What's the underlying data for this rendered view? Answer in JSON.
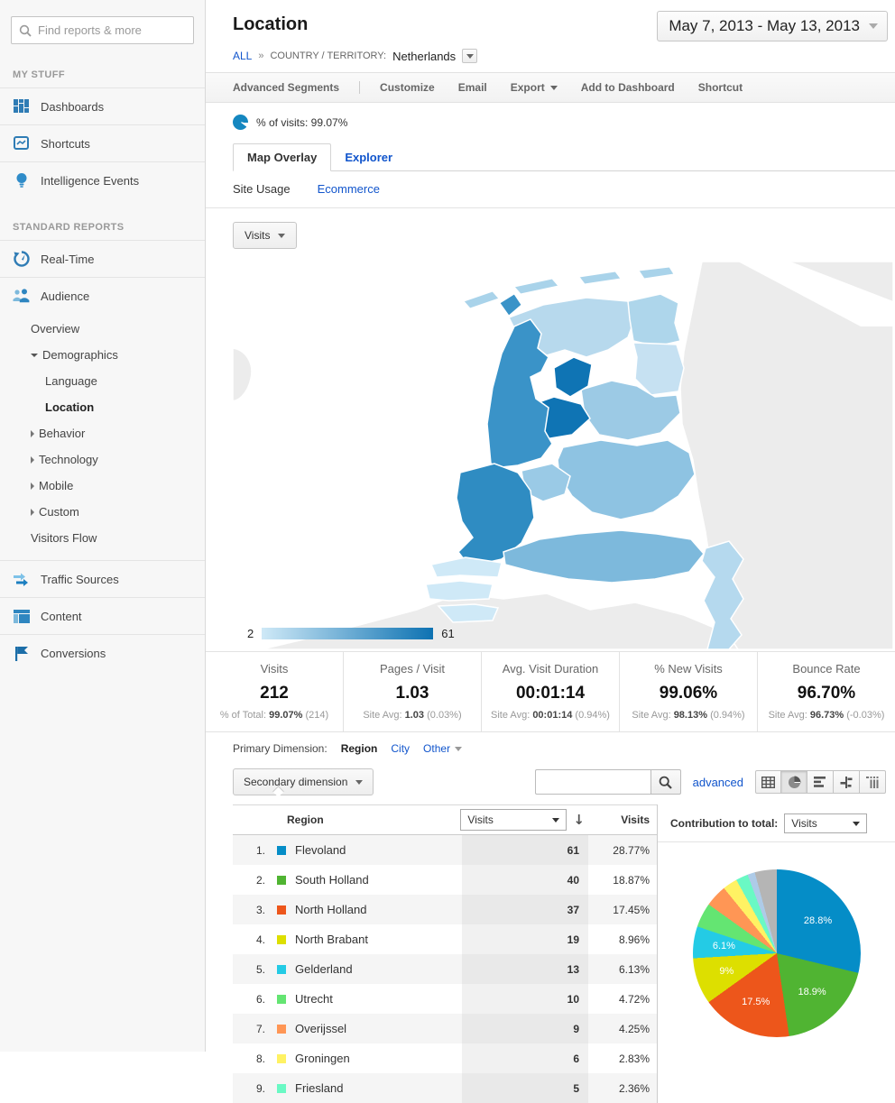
{
  "sidebar": {
    "search_placeholder": "Find reports & more",
    "sections": {
      "my_stuff": "MY STUFF",
      "standard_reports": "STANDARD REPORTS"
    },
    "items": {
      "dashboards": "Dashboards",
      "shortcuts": "Shortcuts",
      "intelligence": "Intelligence Events",
      "realtime": "Real-Time",
      "audience": "Audience",
      "overview": "Overview",
      "demographics": "Demographics",
      "language": "Language",
      "location": "Location",
      "behavior": "Behavior",
      "technology": "Technology",
      "mobile": "Mobile",
      "custom": "Custom",
      "visitors_flow": "Visitors Flow",
      "traffic_sources": "Traffic Sources",
      "content": "Content",
      "conversions": "Conversions"
    }
  },
  "header": {
    "title": "Location",
    "date_range": "May 7, 2013 - May 13, 2013",
    "breadcrumb": {
      "all": "ALL",
      "sep": "»",
      "dimension": "COUNTRY / TERRITORY:",
      "value": "Netherlands"
    },
    "toolbar": {
      "advanced_segments": "Advanced Segments",
      "customize": "Customize",
      "email": "Email",
      "export": "Export",
      "add_to_dashboard": "Add to Dashboard",
      "shortcut": "Shortcut"
    }
  },
  "report": {
    "visits_share": "% of visits: 99.07%",
    "tabs": {
      "map_overlay": "Map Overlay",
      "explorer": "Explorer"
    },
    "subtabs": {
      "site_usage": "Site Usage",
      "ecommerce": "Ecommerce"
    },
    "metric_selector": "Visits",
    "map": {
      "legend_min": "2",
      "legend_max": "61"
    },
    "metrics": [
      {
        "label": "Visits",
        "value": "212",
        "sub_prefix": "% of Total:",
        "sub_value": "99.07%",
        "sub_delta": "(214)"
      },
      {
        "label": "Pages / Visit",
        "value": "1.03",
        "sub_prefix": "Site Avg:",
        "sub_value": "1.03",
        "sub_delta": "(0.03%)"
      },
      {
        "label": "Avg. Visit Duration",
        "value": "00:01:14",
        "sub_prefix": "Site Avg:",
        "sub_value": "00:01:14",
        "sub_delta": "(0.94%)"
      },
      {
        "label": "% New Visits",
        "value": "99.06%",
        "sub_prefix": "Site Avg:",
        "sub_value": "98.13%",
        "sub_delta": "(0.94%)"
      },
      {
        "label": "Bounce Rate",
        "value": "96.70%",
        "sub_prefix": "Site Avg:",
        "sub_value": "96.73%",
        "sub_delta": "(-0.03%)"
      }
    ],
    "primary_dimension": {
      "label": "Primary Dimension:",
      "region": "Region",
      "city": "City",
      "other": "Other"
    },
    "table_toolbar": {
      "secondary_dimension": "Secondary dimension",
      "advanced": "advanced",
      "search_value": ""
    },
    "table": {
      "col_region": "Region",
      "sort_metric": "Visits",
      "col_visits": "Visits",
      "rows": [
        {
          "rank": "1.",
          "region": "Flevoland",
          "visits": "61",
          "pct": "28.77%",
          "color": "#058dc7"
        },
        {
          "rank": "2.",
          "region": "South Holland",
          "visits": "40",
          "pct": "18.87%",
          "color": "#50b432"
        },
        {
          "rank": "3.",
          "region": "North Holland",
          "visits": "37",
          "pct": "17.45%",
          "color": "#ed561b"
        },
        {
          "rank": "4.",
          "region": "North Brabant",
          "visits": "19",
          "pct": "8.96%",
          "color": "#dddf00"
        },
        {
          "rank": "5.",
          "region": "Gelderland",
          "visits": "13",
          "pct": "6.13%",
          "color": "#24cbe5"
        },
        {
          "rank": "6.",
          "region": "Utrecht",
          "visits": "10",
          "pct": "4.72%",
          "color": "#64e572"
        },
        {
          "rank": "7.",
          "region": "Overijssel",
          "visits": "9",
          "pct": "4.25%",
          "color": "#ff9655"
        },
        {
          "rank": "8.",
          "region": "Groningen",
          "visits": "6",
          "pct": "2.83%",
          "color": "#fff263"
        },
        {
          "rank": "9.",
          "region": "Friesland",
          "visits": "5",
          "pct": "2.36%",
          "color": "#6af9c4"
        }
      ]
    },
    "contribution": {
      "label": "Contribution to total:",
      "selector": "Visits"
    }
  },
  "chart_data": [
    {
      "type": "pie",
      "title": "Contribution to total: Visits",
      "legend_position": "none",
      "slices": [
        {
          "label": "Flevoland",
          "value": 61,
          "pct": 28.77,
          "display": "28.8%",
          "color": "#058dc7"
        },
        {
          "label": "South Holland",
          "value": 40,
          "pct": 18.87,
          "display": "18.9%",
          "color": "#50b432"
        },
        {
          "label": "North Holland",
          "value": 37,
          "pct": 17.45,
          "display": "17.5%",
          "color": "#ed561b"
        },
        {
          "label": "North Brabant",
          "value": 19,
          "pct": 8.96,
          "display": "9%",
          "color": "#dddf00"
        },
        {
          "label": "Gelderland",
          "value": 13,
          "pct": 6.13,
          "display": "6.1%",
          "color": "#24cbe5"
        },
        {
          "label": "Utrecht",
          "value": 10,
          "pct": 4.72,
          "display": "",
          "color": "#64e572"
        },
        {
          "label": "Overijssel",
          "value": 9,
          "pct": 4.25,
          "display": "",
          "color": "#ff9655"
        },
        {
          "label": "Groningen",
          "value": 6,
          "pct": 2.83,
          "display": "",
          "color": "#fff263"
        },
        {
          "label": "Friesland",
          "value": 5,
          "pct": 2.36,
          "display": "",
          "color": "#6af9c4"
        },
        {
          "label": "",
          "pct": 1.42,
          "display": "",
          "color": "#aecbe8"
        },
        {
          "label": "",
          "pct": 4.24,
          "display": "",
          "color": "#b5b5b5"
        }
      ]
    },
    {
      "type": "heatmap",
      "title": "Map Overlay: Visits by Region (Netherlands)",
      "scale": {
        "min": 2,
        "max": 61
      },
      "categories": [
        "Flevoland",
        "South Holland",
        "North Holland",
        "North Brabant",
        "Gelderland",
        "Utrecht",
        "Overijssel",
        "Groningen",
        "Friesland"
      ],
      "values": [
        61,
        40,
        37,
        19,
        13,
        10,
        9,
        6,
        5
      ]
    }
  ]
}
